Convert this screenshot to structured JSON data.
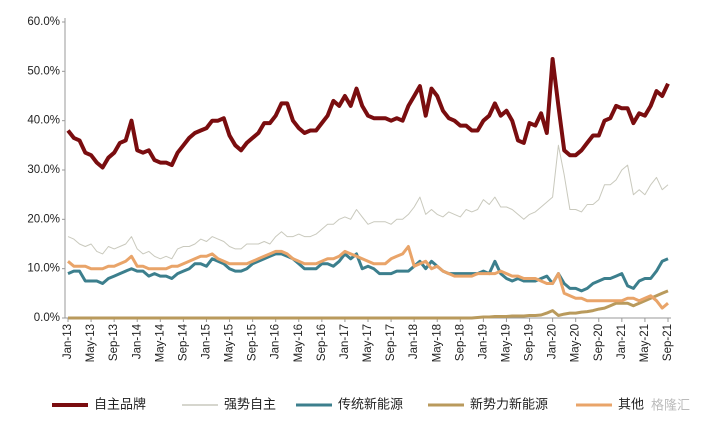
{
  "chart_data": {
    "type": "line",
    "categories": [
      "Jan-13",
      null,
      null,
      null,
      "May-13",
      null,
      null,
      null,
      "Sep-13",
      null,
      null,
      null,
      "Jan-14",
      null,
      null,
      null,
      "May-14",
      null,
      null,
      null,
      "Sep-14",
      null,
      null,
      null,
      "Jan-15",
      null,
      null,
      null,
      "May-15",
      null,
      null,
      null,
      "Sep-15",
      null,
      null,
      null,
      "Jan-16",
      null,
      null,
      null,
      "May-16",
      null,
      null,
      null,
      "Sep-16",
      null,
      null,
      null,
      "Jan-17",
      null,
      null,
      null,
      "May-17",
      null,
      null,
      null,
      "Sep-17",
      null,
      null,
      null,
      "Jan-18",
      null,
      null,
      null,
      "May-18",
      null,
      null,
      null,
      "Sep-18",
      null,
      null,
      null,
      "Jan-19",
      null,
      null,
      null,
      "May-19",
      null,
      null,
      null,
      "Sep-19",
      null,
      null,
      null,
      "Jan-20",
      null,
      null,
      null,
      "May-20",
      null,
      null,
      null,
      "Sep-20",
      null,
      null,
      null,
      "Jan-21",
      null,
      null,
      null,
      "May-21",
      null,
      null,
      null,
      "Sep-21"
    ],
    "series": [
      {
        "name": "自主品牌",
        "color": "#7a0d0f",
        "width": 4,
        "values": [
          38,
          36.5,
          36,
          33.5,
          33,
          31.5,
          30.5,
          32.5,
          33.5,
          35.5,
          36,
          40,
          34,
          33.5,
          34,
          32,
          31.5,
          31.5,
          31,
          33.5,
          35,
          36.5,
          37.5,
          38,
          38.5,
          40,
          40,
          40.5,
          37,
          35,
          34,
          35.5,
          36.5,
          37.5,
          39.5,
          39.5,
          41,
          43.5,
          43.5,
          40,
          38.5,
          37.5,
          38,
          38,
          39.5,
          41,
          44,
          43,
          45,
          43,
          46.5,
          43,
          41,
          40.5,
          40.5,
          40.5,
          40,
          40.5,
          40,
          43,
          45,
          47,
          41,
          46.5,
          45,
          42,
          40.5,
          40,
          39,
          39,
          38,
          38,
          40,
          41,
          43.5,
          41,
          42,
          40,
          36,
          35.5,
          39.5,
          39,
          41.5,
          37.5,
          52.5,
          43,
          34,
          33,
          33,
          34,
          35.5,
          37,
          37,
          40,
          40.5,
          43,
          42.5,
          42.5,
          39.5,
          41.5,
          41,
          43,
          46,
          45,
          47.5
        ]
      },
      {
        "name": "强势自主",
        "color": "#c9c9bd",
        "width": 1,
        "values": [
          16.5,
          16,
          15,
          14.5,
          15,
          13.5,
          13,
          14.5,
          14,
          14.5,
          15,
          16.5,
          14,
          13,
          13.5,
          12.5,
          12,
          12.5,
          12,
          14,
          14.5,
          14.5,
          15,
          16,
          15.5,
          16.5,
          16,
          15.5,
          14.5,
          14,
          14,
          15,
          15,
          15,
          15.5,
          15,
          16.5,
          17.5,
          16.5,
          16.5,
          17,
          16.5,
          16.5,
          17,
          18,
          19,
          19,
          20,
          20.5,
          20,
          22,
          20.5,
          19,
          19.5,
          19.5,
          19.5,
          19,
          20,
          20,
          21,
          22.5,
          24.5,
          21,
          22,
          21,
          20.5,
          21.5,
          21,
          20.5,
          22,
          21.5,
          22,
          24,
          23,
          24.5,
          22.5,
          22.5,
          22,
          21,
          20,
          21,
          21.5,
          22.5,
          23.5,
          24.5,
          35,
          29,
          22,
          22,
          21.5,
          23,
          23,
          24,
          27,
          27,
          28,
          30,
          31,
          25,
          26,
          25,
          27,
          28.5,
          26,
          27
        ]
      },
      {
        "name": "传统新能源",
        "color": "#3c7f8d",
        "width": 3,
        "values": [
          9,
          9.5,
          9.5,
          7.5,
          7.5,
          7.5,
          7,
          8,
          8.5,
          9,
          9.5,
          10,
          9.5,
          9.5,
          8.5,
          9,
          8.5,
          8.5,
          8,
          9,
          9.5,
          10,
          11,
          11,
          10.5,
          12,
          11.5,
          11,
          10,
          9.5,
          9.5,
          10,
          11,
          11.5,
          12,
          12.5,
          13,
          13,
          12.5,
          12,
          11,
          10,
          10,
          10,
          11,
          11,
          10.5,
          11.5,
          13,
          12,
          13,
          10,
          10.5,
          10,
          9,
          9,
          9,
          9.5,
          9.5,
          9.5,
          10.5,
          11.5,
          10,
          11.5,
          10.5,
          9.5,
          9,
          9,
          9,
          9,
          9,
          9,
          9.5,
          9,
          11.5,
          9,
          8,
          7.5,
          8,
          7.5,
          7.5,
          7.5,
          8,
          8.5,
          7,
          9,
          7,
          6,
          6,
          5.5,
          6,
          7,
          7.5,
          8,
          8,
          8.5,
          9,
          6.5,
          6,
          7.5,
          8,
          8,
          9.5,
          11.5,
          12
        ]
      },
      {
        "name": "新势力新能源",
        "color": "#b99a5c",
        "width": 3,
        "values": [
          0,
          0,
          0,
          0,
          0,
          0,
          0,
          0,
          0,
          0,
          0,
          0,
          0,
          0,
          0,
          0,
          0,
          0,
          0,
          0,
          0,
          0,
          0,
          0,
          0,
          0,
          0,
          0,
          0,
          0,
          0,
          0,
          0,
          0,
          0,
          0,
          0,
          0,
          0,
          0,
          0,
          0,
          0,
          0,
          0,
          0,
          0,
          0,
          0,
          0,
          0,
          0,
          0,
          0,
          0,
          0,
          0,
          0,
          0,
          0,
          0,
          0,
          0,
          0,
          0,
          0,
          0,
          0,
          0,
          0,
          0,
          0.1,
          0.2,
          0.2,
          0.3,
          0.3,
          0.3,
          0.4,
          0.4,
          0.4,
          0.5,
          0.5,
          0.6,
          1,
          1.5,
          0.5,
          0.8,
          1,
          1,
          1.2,
          1.3,
          1.5,
          1.8,
          2,
          2.5,
          3,
          3,
          3,
          2.5,
          3,
          3.5,
          4,
          4.5,
          5,
          5.5
        ]
      },
      {
        "name": "其他",
        "color": "#e9a469",
        "width": 3,
        "values": [
          11.5,
          10.5,
          10.5,
          10.5,
          10,
          10,
          10,
          10.5,
          10.5,
          11,
          11.5,
          12.5,
          10.5,
          10.5,
          10,
          10,
          10,
          10,
          10.5,
          10.5,
          11,
          11.5,
          12,
          12.5,
          12.5,
          13,
          12,
          11.5,
          11,
          11,
          11,
          11,
          11.5,
          12,
          12.5,
          13,
          13.5,
          13.5,
          13,
          12,
          11.5,
          11,
          11,
          11,
          11.5,
          12,
          12,
          12.5,
          13.5,
          13,
          12.5,
          12,
          11.5,
          11,
          11,
          11,
          12,
          12.5,
          13,
          14.5,
          10.5,
          11,
          11.5,
          10,
          10.5,
          9.5,
          9,
          8.5,
          8.5,
          8.5,
          8.5,
          9,
          9,
          9,
          9,
          9.5,
          9,
          8.5,
          8.5,
          8,
          8,
          8,
          7.5,
          7,
          7,
          9,
          5,
          4.5,
          4,
          4,
          3.5,
          3.5,
          3.5,
          3.5,
          3.5,
          3.5,
          3.5,
          4,
          4,
          3.5,
          4,
          4.5,
          3.5,
          2,
          3
        ]
      }
    ],
    "ylim": [
      0,
      60
    ],
    "yticks": [
      {
        "value": 0,
        "label": "0.0%"
      },
      {
        "value": 10,
        "label": "10.0%"
      },
      {
        "value": 20,
        "label": "20.0%"
      },
      {
        "value": 30,
        "label": "30.0%"
      },
      {
        "value": 40,
        "label": "40.0%"
      },
      {
        "value": 50,
        "label": "50.0%"
      },
      {
        "value": 60,
        "label": "60.0%"
      }
    ],
    "grid": false,
    "legend": "bottom",
    "watermark": "格隆汇"
  }
}
